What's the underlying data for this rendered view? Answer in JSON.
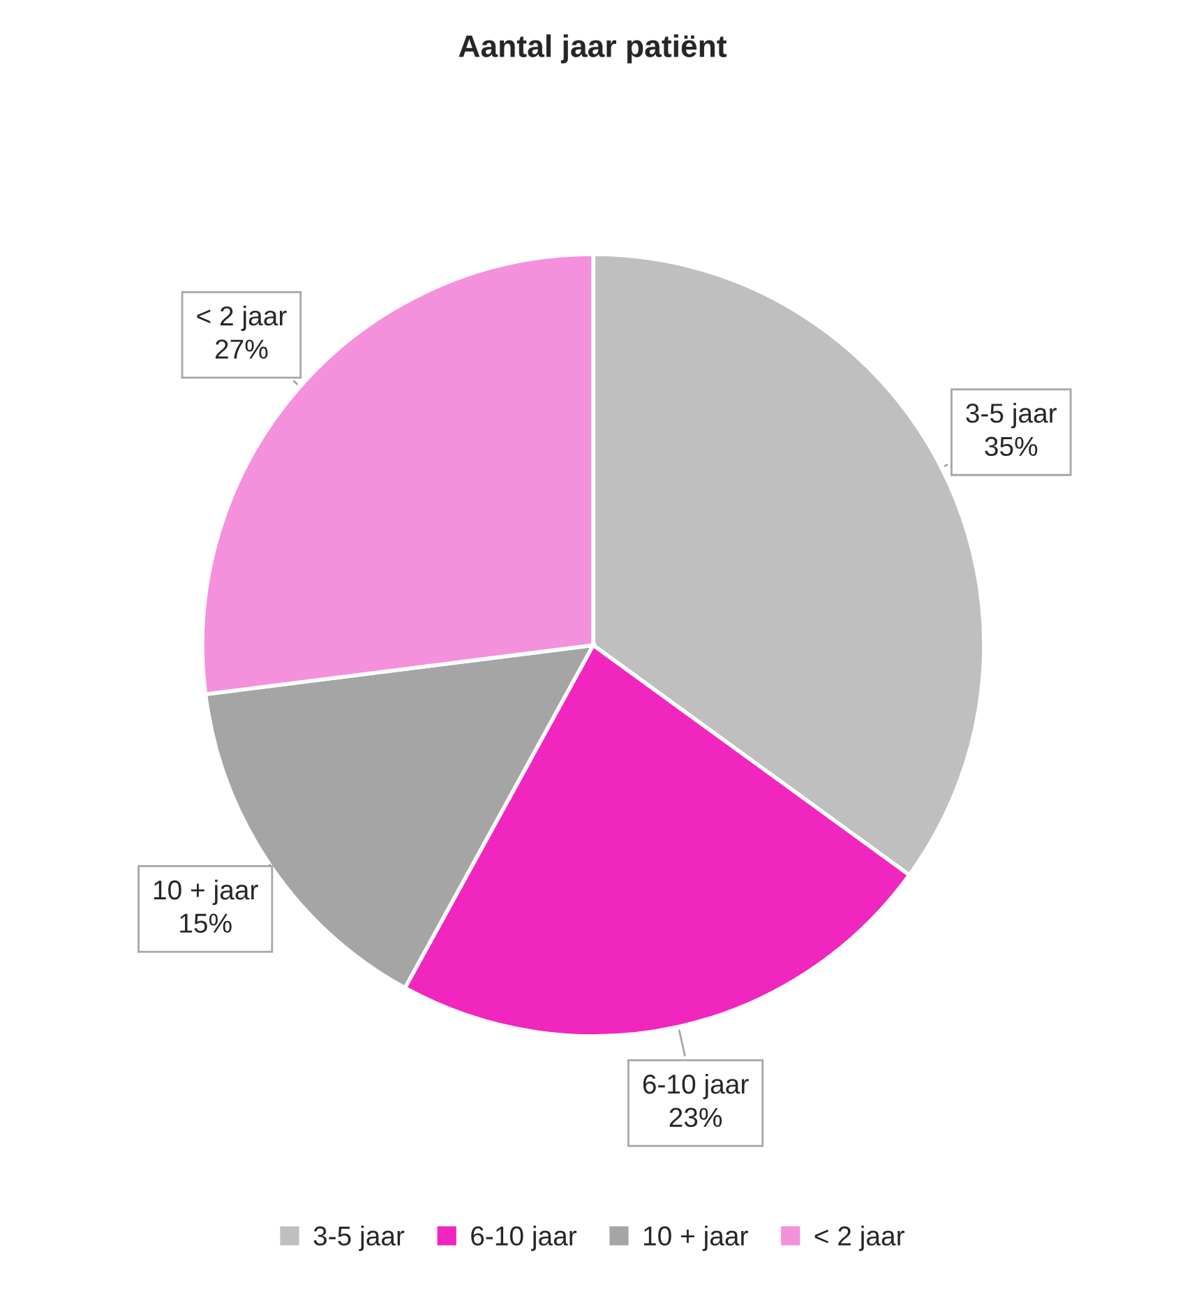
{
  "chart_data": {
    "type": "pie",
    "title": "Aantal jaar patiënt",
    "categories": [
      "3-5 jaar",
      "6-10 jaar",
      "10 + jaar",
      "< 2 jaar"
    ],
    "values": [
      35,
      23,
      15,
      27
    ],
    "value_labels": [
      "35%",
      "23%",
      "15%",
      "27%"
    ],
    "colors": [
      "#bfbfbf",
      "#f026bf",
      "#a5a5a5",
      "#f590dc"
    ],
    "legend": "bottom"
  }
}
